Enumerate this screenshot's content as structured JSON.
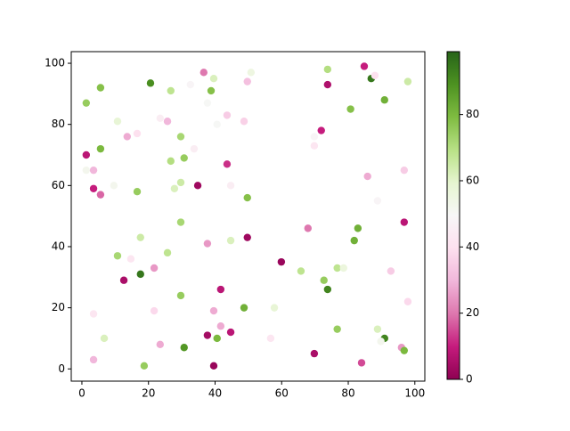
{
  "chart_data": {
    "type": "scatter",
    "xlim": [
      -3.2,
      103
    ],
    "ylim": [
      -4,
      103.8
    ],
    "xticks": [
      0,
      20,
      40,
      60,
      80,
      100
    ],
    "yticks": [
      0,
      20,
      40,
      60,
      80,
      100
    ],
    "colormap": [
      "#8e0152",
      "#c51b7d",
      "#de77ae",
      "#f1b6da",
      "#fde0ef",
      "#f7f7f7",
      "#e6f5d0",
      "#b8e186",
      "#7fbc41",
      "#4d9221",
      "#276419"
    ],
    "clim": [
      0,
      99
    ],
    "cticks": [
      0,
      20,
      40,
      60,
      80
    ],
    "series": [
      {
        "x": [
          1.3,
          1.3,
          3.5,
          1.3,
          5.6,
          5.6,
          3.5,
          5.6,
          9.6,
          10.7,
          13.6,
          16.6,
          3.5,
          3.5,
          6.7,
          10.7,
          12.6,
          14.7,
          16.6,
          17.6,
          17.6,
          18.7,
          20.6,
          21.7,
          21.7,
          23.5,
          23.5,
          25.7,
          26.7,
          26.7,
          25.7,
          27.8,
          29.7,
          29.7,
          30.7,
          29.7,
          29.7,
          30.7,
          32.6,
          33.7,
          34.8,
          36.6,
          37.7,
          38.8,
          39.6,
          40.6,
          37.7,
          37.7,
          39.6,
          40.6,
          39.6,
          41.7,
          41.7,
          43.6,
          43.6,
          44.7,
          44.7,
          44.7,
          48.7,
          49.7,
          50.8,
          49.7,
          49.7,
          48.7,
          56.7,
          57.8,
          59.9,
          65.8,
          67.9,
          69.8,
          69.8,
          69.8,
          71.9,
          73.8,
          73.8,
          72.7,
          73.8,
          76.7,
          78.6,
          76.7,
          80.7,
          81.8,
          82.9,
          84,
          84.8,
          86.9,
          88,
          85.8,
          88.8,
          90.9,
          88.8,
          90.9,
          89.8,
          92.8,
          96.8,
          96.8,
          97.9,
          97.9,
          96,
          96.8
        ],
        "y": [
          70,
          65,
          65,
          87,
          92,
          72,
          59,
          57,
          60,
          81,
          76,
          77,
          18,
          3,
          10,
          37,
          29,
          36,
          58,
          31,
          43,
          1,
          93.5,
          33,
          19,
          82,
          8,
          81,
          91,
          68,
          38,
          59,
          76,
          61,
          69,
          48,
          24,
          7,
          93,
          72,
          60,
          97,
          87,
          91,
          95,
          80,
          41,
          11,
          19,
          10,
          1,
          26,
          14,
          83,
          67,
          60,
          42,
          12,
          81,
          94,
          97,
          56,
          43,
          20,
          10,
          20,
          35,
          32,
          46,
          76,
          73,
          5,
          78,
          98,
          93,
          29,
          26,
          33,
          33,
          13,
          85,
          42,
          46,
          2,
          99,
          95,
          96,
          63,
          55,
          88,
          13,
          10,
          9,
          32,
          65,
          48,
          94,
          22,
          7,
          6
        ],
        "c": [
          8,
          52,
          30,
          75,
          78,
          80,
          10,
          18,
          52,
          58,
          28,
          40,
          42,
          30,
          62,
          72,
          5,
          42,
          75,
          95,
          65,
          75,
          90,
          25,
          38,
          45,
          28,
          30,
          68,
          70,
          68,
          62,
          72,
          65,
          75,
          72,
          75,
          88,
          48,
          45,
          3,
          20,
          50,
          78,
          62,
          50,
          25,
          4,
          28,
          80,
          2,
          8,
          28,
          35,
          12,
          45,
          62,
          8,
          36,
          32,
          55,
          78,
          3,
          82,
          42,
          58,
          2,
          68,
          20,
          48,
          42,
          5,
          10,
          70,
          6,
          75,
          92,
          68,
          56,
          75,
          78,
          82,
          82,
          15,
          10,
          95,
          40,
          28,
          48,
          82,
          62,
          92,
          52,
          35,
          35,
          8,
          65,
          38,
          25,
          80
        ]
      }
    ]
  }
}
